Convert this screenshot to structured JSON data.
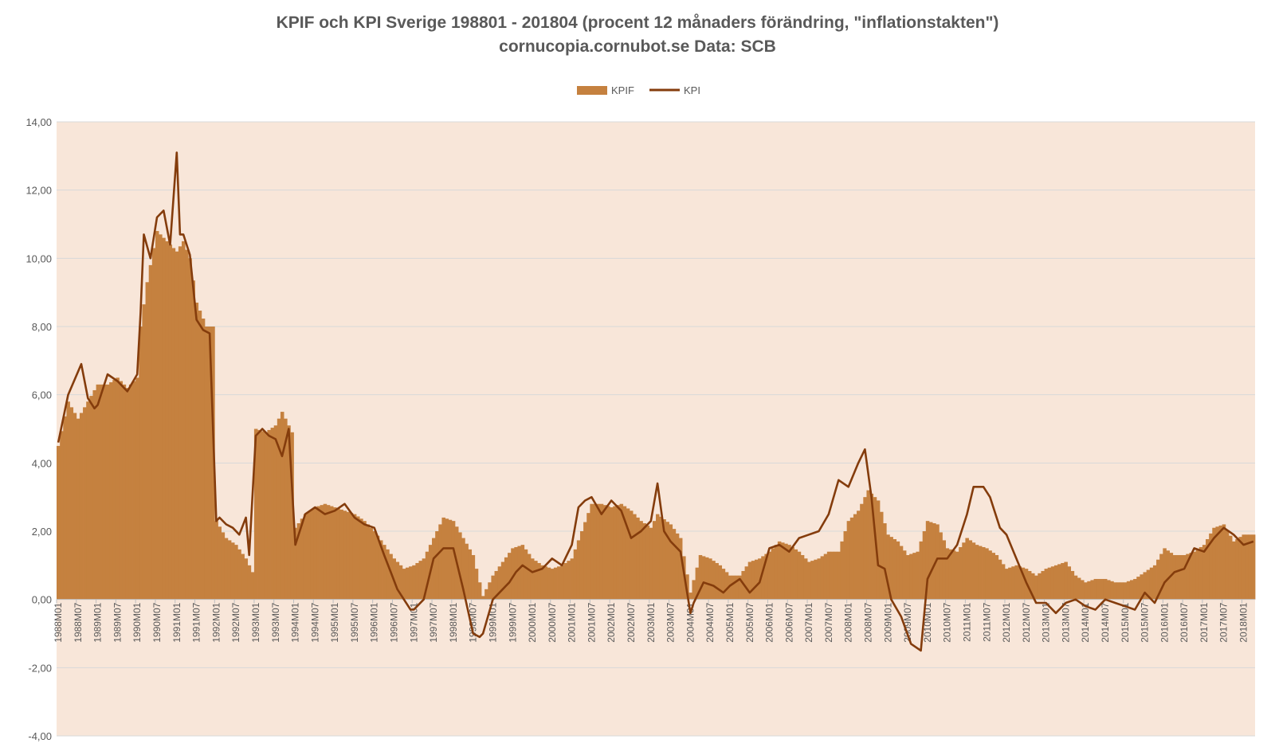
{
  "chart_data": {
    "type": "bar",
    "title": "KPIF och KPI Sverige 198801 - 201804 (procent 12 månaders förändring, \"inflationstakten\")",
    "subtitle": "cornucopia.cornubot.se Data: SCB",
    "xlabel": "",
    "ylabel": "",
    "ylim": [
      -4,
      14
    ],
    "y_ticks": [
      "-4,00",
      "-2,00",
      "0,00",
      "2,00",
      "4,00",
      "6,00",
      "8,00",
      "10,00",
      "12,00",
      "14,00"
    ],
    "x_tick_labels": [
      "1988M01",
      "1988M07",
      "1989M01",
      "1989M07",
      "1990M01",
      "1990M07",
      "1991M01",
      "1991M07",
      "1992M01",
      "1992M07",
      "1993M01",
      "1993M07",
      "1994M01",
      "1994M07",
      "1995M01",
      "1995M07",
      "1996M01",
      "1996M07",
      "1997M01",
      "1997M07",
      "1998M01",
      "1998M07",
      "1999M01",
      "1999M07",
      "2000M01",
      "2000M07",
      "2001M01",
      "2001M07",
      "2002M01",
      "2002M07",
      "2003M01",
      "2003M07",
      "2004M01",
      "2004M07",
      "2005M01",
      "2005M07",
      "2006M01",
      "2006M07",
      "2007M01",
      "2007M07",
      "2008M01",
      "2008M07",
      "2009M01",
      "2009M07",
      "2010M01",
      "2010M07",
      "2011M01",
      "2011M07",
      "2012M01",
      "2012M07",
      "2013M01",
      "2013M07",
      "2014M01",
      "2014M07",
      "2015M01",
      "2015M07",
      "2016M01",
      "2016M07",
      "2017M01",
      "2017M07",
      "2018M01"
    ],
    "x_range": [
      "1988M01",
      "2018M04"
    ],
    "grid": true,
    "legend_position": "top-center",
    "colors": {
      "plot_bg": "#f8e6d9",
      "kpif": "#c5813f",
      "kpi": "#843c0c",
      "grid": "#d9d9d9",
      "axis": "#bfbfbf"
    },
    "series": [
      {
        "name": "KPIF",
        "type": "column",
        "x": [
          "1988M01",
          "1988M04",
          "1988M07",
          "1988M10",
          "1989M01",
          "1989M04",
          "1989M07",
          "1989M10",
          "1990M01",
          "1990M02",
          "1990M04",
          "1990M07",
          "1990M10",
          "1991M01",
          "1991M03",
          "1991M05",
          "1991M07",
          "1991M10",
          "1991M12",
          "1992M01",
          "1992M04",
          "1992M07",
          "1992M10",
          "1992M12",
          "1993M01",
          "1993M04",
          "1993M07",
          "1993M09",
          "1993M12",
          "1994M01",
          "1994M04",
          "1994M07",
          "1994M10",
          "1995M01",
          "1995M04",
          "1995M07",
          "1995M10",
          "1996M01",
          "1996M04",
          "1996M07",
          "1996M10",
          "1997M01",
          "1997M04",
          "1997M07",
          "1997M10",
          "1998M01",
          "1998M04",
          "1998M07",
          "1998M08",
          "1998M10",
          "1999M01",
          "1999M04",
          "1999M07",
          "1999M10",
          "2000M01",
          "2000M04",
          "2000M07",
          "2000M10",
          "2001M01",
          "2001M04",
          "2001M07",
          "2001M10",
          "2002M01",
          "2002M04",
          "2002M07",
          "2002M10",
          "2003M01",
          "2003M03",
          "2003M07",
          "2003M10",
          "2004M01",
          "2004M04",
          "2004M07",
          "2004M10",
          "2005M01",
          "2005M04",
          "2005M07",
          "2005M10",
          "2006M01",
          "2006M04",
          "2006M07",
          "2006M10",
          "2007M01",
          "2007M04",
          "2007M07",
          "2007M10",
          "2008M01",
          "2008M04",
          "2008M07",
          "2008M10",
          "2009M01",
          "2009M04",
          "2009M07",
          "2009M10",
          "2010M01",
          "2010M04",
          "2010M07",
          "2010M10",
          "2011M01",
          "2011M04",
          "2011M07",
          "2011M10",
          "2012M01",
          "2012M04",
          "2012M07",
          "2012M10",
          "2013M01",
          "2013M04",
          "2013M07",
          "2013M10",
          "2014M01",
          "2014M04",
          "2014M07",
          "2014M10",
          "2015M01",
          "2015M04",
          "2015M07",
          "2015M10",
          "2016M01",
          "2016M04",
          "2016M07",
          "2016M10",
          "2017M01",
          "2017M04",
          "2017M07",
          "2017M10",
          "2018M01",
          "2018M04"
        ],
        "values": [
          4.5,
          5.8,
          5.3,
          5.8,
          6.3,
          6.3,
          6.5,
          6.2,
          6.5,
          8.0,
          9.3,
          10.8,
          10.5,
          10.2,
          10.5,
          10.0,
          8.7,
          8.0,
          8.0,
          2.3,
          1.8,
          1.6,
          1.2,
          0.8,
          5.0,
          4.9,
          5.1,
          5.5,
          4.9,
          2.1,
          2.5,
          2.7,
          2.8,
          2.7,
          2.6,
          2.5,
          2.3,
          2.0,
          1.6,
          1.2,
          0.9,
          1.0,
          1.2,
          1.8,
          2.4,
          2.3,
          1.8,
          1.3,
          0.9,
          0.1,
          0.7,
          1.1,
          1.5,
          1.6,
          1.2,
          1.0,
          0.9,
          1.0,
          1.2,
          2.0,
          2.8,
          2.8,
          2.7,
          2.8,
          2.6,
          2.3,
          2.1,
          2.5,
          2.2,
          1.8,
          0.2,
          1.3,
          1.2,
          1.0,
          0.7,
          0.7,
          1.1,
          1.2,
          1.4,
          1.7,
          1.6,
          1.4,
          1.1,
          1.2,
          1.4,
          1.4,
          2.3,
          2.6,
          3.2,
          2.9,
          1.9,
          1.7,
          1.3,
          1.4,
          2.3,
          2.2,
          1.5,
          1.4,
          1.8,
          1.6,
          1.5,
          1.3,
          0.9,
          1.0,
          0.9,
          0.7,
          0.9,
          1.0,
          1.1,
          0.7,
          0.5,
          0.6,
          0.6,
          0.5,
          0.5,
          0.6,
          0.8,
          1.0,
          1.5,
          1.3,
          1.3,
          1.4,
          1.6,
          2.1,
          2.2,
          1.7,
          1.9,
          1.9
        ]
      },
      {
        "name": "KPI",
        "type": "line",
        "x": [
          "1988M01",
          "1988M04",
          "1988M08",
          "1988M10",
          "1988M12",
          "1989M01",
          "1989M04",
          "1989M07",
          "1989M10",
          "1990M01",
          "1990M02",
          "1990M03",
          "1990M05",
          "1990M07",
          "1990M09",
          "1990M11",
          "1991M01",
          "1991M02",
          "1991M03",
          "1991M05",
          "1991M07",
          "1991M09",
          "1991M11",
          "1992M01",
          "1992M02",
          "1992M04",
          "1992M06",
          "1992M08",
          "1992M10",
          "1992M11",
          "1993M01",
          "1993M03",
          "1993M05",
          "1993M07",
          "1993M09",
          "1993M11",
          "1994M01",
          "1994M04",
          "1994M07",
          "1994M10",
          "1995M01",
          "1995M04",
          "1995M07",
          "1995M10",
          "1996M01",
          "1996M04",
          "1996M06",
          "1996M08",
          "1996M10",
          "1996M12",
          "1997M01",
          "1997M04",
          "1997M07",
          "1997M10",
          "1998M01",
          "1998M04",
          "1998M07",
          "1998M09",
          "1998M10",
          "1999M01",
          "1999M04",
          "1999M06",
          "1999M08",
          "1999M10",
          "2000M01",
          "2000M04",
          "2000M07",
          "2000M10",
          "2001M01",
          "2001M03",
          "2001M05",
          "2001M07",
          "2001M10",
          "2002M01",
          "2002M04",
          "2002M07",
          "2002M10",
          "2003M01",
          "2003M03",
          "2003M05",
          "2003M07",
          "2003M10",
          "2004M01",
          "2004M02",
          "2004M05",
          "2004M08",
          "2004M11",
          "2005M01",
          "2005M04",
          "2005M07",
          "2005M10",
          "2006M01",
          "2006M04",
          "2006M07",
          "2006M10",
          "2007M01",
          "2007M04",
          "2007M07",
          "2007M10",
          "2008M01",
          "2008M04",
          "2008M06",
          "2008M08",
          "2008M10",
          "2008M12",
          "2009M02",
          "2009M05",
          "2009M08",
          "2009M11",
          "2010M01",
          "2010M04",
          "2010M07",
          "2010M10",
          "2011M01",
          "2011M03",
          "2011M06",
          "2011M08",
          "2011M11",
          "2012M01",
          "2012M04",
          "2012M07",
          "2012M10",
          "2013M01",
          "2013M04",
          "2013M07",
          "2013M10",
          "2014M01",
          "2014M04",
          "2014M07",
          "2014M10",
          "2015M01",
          "2015M04",
          "2015M07",
          "2015M10",
          "2016M01",
          "2016M04",
          "2016M07",
          "2016M10",
          "2017M01",
          "2017M04",
          "2017M07",
          "2017M10",
          "2018M01",
          "2018M04"
        ],
        "values": [
          4.6,
          6.0,
          6.9,
          5.9,
          5.6,
          5.7,
          6.6,
          6.4,
          6.1,
          6.6,
          8.4,
          10.7,
          10.0,
          11.2,
          11.4,
          10.4,
          13.1,
          10.7,
          10.7,
          10.1,
          8.2,
          7.9,
          7.8,
          2.3,
          2.4,
          2.2,
          2.1,
          1.9,
          2.4,
          1.3,
          4.8,
          5.0,
          4.8,
          4.7,
          4.2,
          5.0,
          1.6,
          2.5,
          2.7,
          2.5,
          2.6,
          2.8,
          2.4,
          2.2,
          2.1,
          1.3,
          0.8,
          0.3,
          0.0,
          -0.3,
          -0.3,
          0.0,
          1.2,
          1.5,
          1.5,
          0.3,
          -1.0,
          -1.1,
          -1.0,
          0.0,
          0.3,
          0.5,
          0.8,
          1.0,
          0.8,
          0.9,
          1.2,
          1.0,
          1.6,
          2.7,
          2.9,
          3.0,
          2.5,
          2.9,
          2.6,
          1.8,
          2.0,
          2.3,
          3.4,
          2.0,
          1.7,
          1.4,
          -0.4,
          -0.1,
          0.5,
          0.4,
          0.2,
          0.4,
          0.6,
          0.2,
          0.5,
          1.5,
          1.6,
          1.4,
          1.8,
          1.9,
          2.0,
          2.5,
          3.5,
          3.3,
          4.0,
          4.4,
          3.0,
          1.0,
          0.9,
          0.0,
          -0.5,
          -1.3,
          -1.5,
          0.6,
          1.2,
          1.2,
          1.6,
          2.5,
          3.3,
          3.3,
          3.0,
          2.1,
          1.9,
          1.2,
          0.5,
          -0.1,
          -0.1,
          -0.4,
          -0.1,
          0.0,
          -0.2,
          -0.3,
          0.0,
          -0.1,
          -0.2,
          -0.3,
          0.2,
          -0.1,
          0.5,
          0.8,
          0.9,
          1.5,
          1.4,
          1.8,
          2.1,
          1.9,
          1.6,
          1.7
        ]
      }
    ]
  }
}
